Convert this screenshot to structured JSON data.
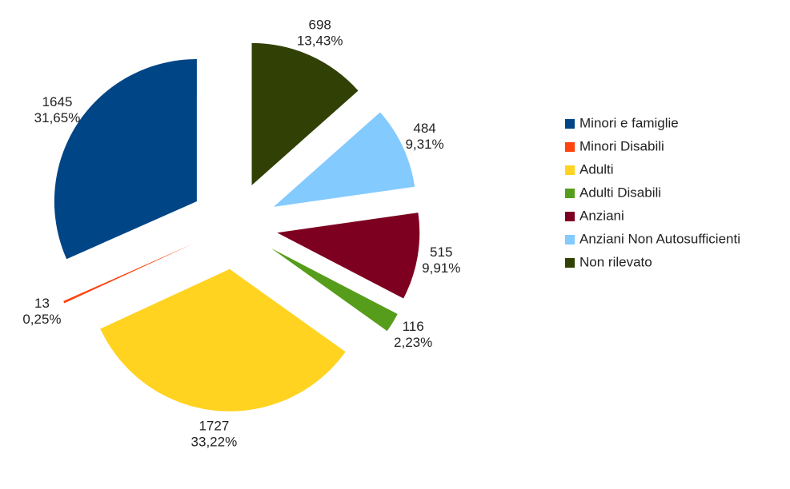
{
  "chart_data": {
    "type": "pie",
    "exploded": true,
    "direction": "counterclockwise",
    "categories": [
      "Minori e famiglie",
      "Minori Disabili",
      "Adulti",
      "Adulti Disabili",
      "Anziani",
      "Anziani Non Autosufficienti",
      "Non rilevato"
    ],
    "values": [
      1645,
      13,
      1727,
      116,
      515,
      484,
      698
    ],
    "percentages": [
      31.65,
      0.25,
      33.22,
      2.23,
      9.91,
      9.31,
      13.43
    ],
    "percentage_labels": [
      "31,65%",
      "0,25%",
      "33,22%",
      "2,23%",
      "9,91%",
      "9,31%",
      "13,43%"
    ],
    "colors": [
      "#004586",
      "#ff420e",
      "#ffd320",
      "#579d1c",
      "#7e0021",
      "#83caff",
      "#314004"
    ],
    "legend": "right"
  }
}
